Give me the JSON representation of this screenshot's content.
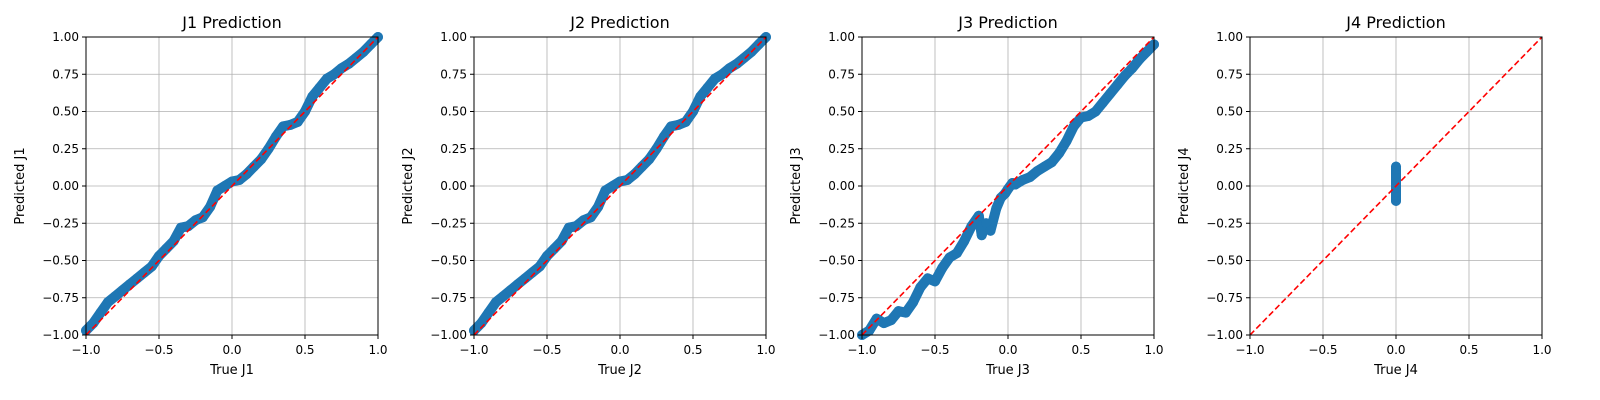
{
  "chart_data": [
    {
      "type": "scatter",
      "title": "J1 Prediction",
      "xlabel": "True J1",
      "ylabel": "Predicted J1",
      "xlim": [
        -1.0,
        1.0
      ],
      "ylim": [
        -1.0,
        1.0
      ],
      "xticks": [
        "−1.0",
        "−0.5",
        "0.0",
        "0.5",
        "1.0"
      ],
      "yticks": [
        "−1.00",
        "−0.75",
        "−0.50",
        "−0.25",
        "0.00",
        "0.25",
        "0.50",
        "0.75",
        "1.00"
      ],
      "grid": true,
      "reference_line": {
        "from": [
          -1,
          -1
        ],
        "to": [
          1,
          1
        ],
        "color": "#ff0000",
        "style": "dashed"
      },
      "points": [
        [
          -1.0,
          -0.97
        ],
        [
          -0.95,
          -0.92
        ],
        [
          -0.9,
          -0.85
        ],
        [
          -0.85,
          -0.78
        ],
        [
          -0.8,
          -0.74
        ],
        [
          -0.75,
          -0.7
        ],
        [
          -0.7,
          -0.66
        ],
        [
          -0.65,
          -0.62
        ],
        [
          -0.6,
          -0.58
        ],
        [
          -0.55,
          -0.54
        ],
        [
          -0.5,
          -0.47
        ],
        [
          -0.45,
          -0.42
        ],
        [
          -0.4,
          -0.37
        ],
        [
          -0.35,
          -0.28
        ],
        [
          -0.3,
          -0.27
        ],
        [
          -0.25,
          -0.23
        ],
        [
          -0.2,
          -0.21
        ],
        [
          -0.15,
          -0.14
        ],
        [
          -0.1,
          -0.03
        ],
        [
          -0.05,
          0.0
        ],
        [
          0.0,
          0.03
        ],
        [
          0.05,
          0.04
        ],
        [
          0.1,
          0.08
        ],
        [
          0.15,
          0.13
        ],
        [
          0.2,
          0.18
        ],
        [
          0.25,
          0.25
        ],
        [
          0.3,
          0.33
        ],
        [
          0.35,
          0.4
        ],
        [
          0.4,
          0.41
        ],
        [
          0.45,
          0.43
        ],
        [
          0.5,
          0.5
        ],
        [
          0.55,
          0.6
        ],
        [
          0.6,
          0.66
        ],
        [
          0.65,
          0.72
        ],
        [
          0.7,
          0.75
        ],
        [
          0.75,
          0.79
        ],
        [
          0.8,
          0.82
        ],
        [
          0.85,
          0.86
        ],
        [
          0.9,
          0.9
        ],
        [
          0.95,
          0.95
        ],
        [
          1.0,
          1.0
        ]
      ]
    },
    {
      "type": "scatter",
      "title": "J2 Prediction",
      "xlabel": "True J2",
      "ylabel": "Predicted J2",
      "xlim": [
        -1.0,
        1.0
      ],
      "ylim": [
        -1.0,
        1.0
      ],
      "xticks": [
        "−1.0",
        "−0.5",
        "0.0",
        "0.5",
        "1.0"
      ],
      "yticks": [
        "−1.00",
        "−0.75",
        "−0.50",
        "−0.25",
        "0.00",
        "0.25",
        "0.50",
        "0.75",
        "1.00"
      ],
      "grid": true,
      "reference_line": {
        "from": [
          -1,
          -1
        ],
        "to": [
          1,
          1
        ],
        "color": "#ff0000",
        "style": "dashed"
      },
      "points": [
        [
          -1.0,
          -0.97
        ],
        [
          -0.95,
          -0.92
        ],
        [
          -0.9,
          -0.85
        ],
        [
          -0.85,
          -0.78
        ],
        [
          -0.8,
          -0.74
        ],
        [
          -0.75,
          -0.7
        ],
        [
          -0.7,
          -0.66
        ],
        [
          -0.65,
          -0.62
        ],
        [
          -0.6,
          -0.58
        ],
        [
          -0.55,
          -0.54
        ],
        [
          -0.5,
          -0.47
        ],
        [
          -0.45,
          -0.42
        ],
        [
          -0.4,
          -0.37
        ],
        [
          -0.35,
          -0.28
        ],
        [
          -0.3,
          -0.27
        ],
        [
          -0.25,
          -0.23
        ],
        [
          -0.2,
          -0.21
        ],
        [
          -0.15,
          -0.14
        ],
        [
          -0.1,
          -0.03
        ],
        [
          -0.05,
          0.0
        ],
        [
          0.0,
          0.03
        ],
        [
          0.05,
          0.04
        ],
        [
          0.1,
          0.08
        ],
        [
          0.15,
          0.13
        ],
        [
          0.2,
          0.18
        ],
        [
          0.25,
          0.25
        ],
        [
          0.3,
          0.33
        ],
        [
          0.35,
          0.4
        ],
        [
          0.4,
          0.41
        ],
        [
          0.45,
          0.43
        ],
        [
          0.5,
          0.5
        ],
        [
          0.55,
          0.6
        ],
        [
          0.6,
          0.66
        ],
        [
          0.65,
          0.72
        ],
        [
          0.7,
          0.75
        ],
        [
          0.75,
          0.79
        ],
        [
          0.8,
          0.82
        ],
        [
          0.85,
          0.86
        ],
        [
          0.9,
          0.9
        ],
        [
          0.95,
          0.95
        ],
        [
          1.0,
          1.0
        ]
      ]
    },
    {
      "type": "scatter",
      "title": "J3 Prediction",
      "xlabel": "True J3",
      "ylabel": "Predicted J3",
      "xlim": [
        -1.0,
        1.0
      ],
      "ylim": [
        -1.0,
        1.0
      ],
      "xticks": [
        "−1.0",
        "−0.5",
        "0.0",
        "0.5",
        "1.0"
      ],
      "yticks": [
        "−1.00",
        "−0.75",
        "−0.50",
        "−0.25",
        "0.00",
        "0.25",
        "0.50",
        "0.75",
        "1.00"
      ],
      "grid": true,
      "reference_line": {
        "from": [
          -1,
          -1
        ],
        "to": [
          1,
          1
        ],
        "color": "#ff0000",
        "style": "dashed"
      },
      "points": [
        [
          -1.0,
          -1.0
        ],
        [
          -0.95,
          -0.97
        ],
        [
          -0.9,
          -0.89
        ],
        [
          -0.85,
          -0.92
        ],
        [
          -0.8,
          -0.9
        ],
        [
          -0.75,
          -0.84
        ],
        [
          -0.7,
          -0.85
        ],
        [
          -0.65,
          -0.78
        ],
        [
          -0.6,
          -0.68
        ],
        [
          -0.55,
          -0.62
        ],
        [
          -0.5,
          -0.64
        ],
        [
          -0.45,
          -0.55
        ],
        [
          -0.4,
          -0.48
        ],
        [
          -0.35,
          -0.45
        ],
        [
          -0.3,
          -0.37
        ],
        [
          -0.25,
          -0.27
        ],
        [
          -0.2,
          -0.2
        ],
        [
          -0.18,
          -0.33
        ],
        [
          -0.15,
          -0.25
        ],
        [
          -0.12,
          -0.3
        ],
        [
          -0.08,
          -0.15
        ],
        [
          -0.05,
          -0.08
        ],
        [
          -0.02,
          -0.05
        ],
        [
          0.0,
          -0.02
        ],
        [
          0.03,
          0.02
        ],
        [
          0.05,
          0.01
        ],
        [
          0.1,
          0.04
        ],
        [
          0.15,
          0.06
        ],
        [
          0.2,
          0.1
        ],
        [
          0.25,
          0.13
        ],
        [
          0.3,
          0.16
        ],
        [
          0.35,
          0.22
        ],
        [
          0.4,
          0.3
        ],
        [
          0.45,
          0.4
        ],
        [
          0.5,
          0.46
        ],
        [
          0.55,
          0.47
        ],
        [
          0.6,
          0.5
        ],
        [
          0.65,
          0.56
        ],
        [
          0.7,
          0.62
        ],
        [
          0.75,
          0.68
        ],
        [
          0.8,
          0.74
        ],
        [
          0.85,
          0.79
        ],
        [
          0.9,
          0.85
        ],
        [
          0.95,
          0.9
        ],
        [
          1.0,
          0.95
        ]
      ]
    },
    {
      "type": "scatter",
      "title": "J4 Prediction",
      "xlabel": "True J4",
      "ylabel": "Predicted J4",
      "xlim": [
        -1.0,
        1.0
      ],
      "ylim": [
        -1.0,
        1.0
      ],
      "xticks": [
        "−1.0",
        "−0.5",
        "0.0",
        "0.5",
        "1.0"
      ],
      "yticks": [
        "−1.00",
        "−0.75",
        "−0.50",
        "−0.25",
        "0.00",
        "0.25",
        "0.50",
        "0.75",
        "1.00"
      ],
      "grid": true,
      "reference_line": {
        "from": [
          -1,
          -1
        ],
        "to": [
          1,
          1
        ],
        "color": "#ff0000",
        "style": "dashed"
      },
      "points": [
        [
          0.0,
          -0.1
        ],
        [
          0.0,
          -0.07
        ],
        [
          0.0,
          -0.04
        ],
        [
          0.0,
          -0.01
        ],
        [
          0.0,
          0.02
        ],
        [
          0.0,
          0.05
        ],
        [
          0.0,
          0.08
        ],
        [
          0.0,
          0.11
        ],
        [
          0.0,
          0.13
        ]
      ]
    }
  ],
  "style": {
    "point_color": "#1f77b4",
    "line_color": "#ff0000",
    "grid_color": "#b0b0b0"
  }
}
